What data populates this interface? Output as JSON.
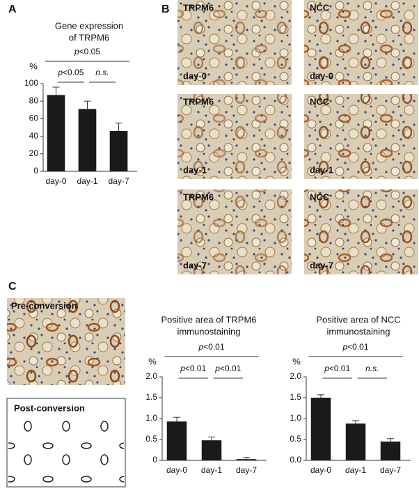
{
  "panels": [
    "A",
    "B",
    "C"
  ],
  "micrographs": [
    {
      "stain": "TRPM6",
      "day": "day-0"
    },
    {
      "stain": "NCC",
      "day": "day-0"
    },
    {
      "stain": "TRPM6",
      "day": "day-1"
    },
    {
      "stain": "NCC",
      "day": "day-1"
    },
    {
      "stain": "TRPM6",
      "day": "day-7"
    },
    {
      "stain": "NCC",
      "day": "day-7"
    }
  ],
  "conversion": [
    "Pre-conversion",
    "Post-conversion"
  ],
  "chart_data": [
    {
      "type": "bar",
      "title": [
        "Gene expression",
        "of TRPM6"
      ],
      "ylabel": "%",
      "categories": [
        "day-0",
        "day-1",
        "day-7"
      ],
      "values": [
        87,
        71,
        46
      ],
      "errors": [
        9,
        9,
        9
      ],
      "color": "#1a1a1a",
      "ylim": [
        0,
        100
      ],
      "yticks": [
        0,
        20,
        40,
        60,
        80,
        100
      ],
      "comparisons": [
        {
          "label": "p<0.05",
          "groups": [
            "day-0",
            "day-7"
          ]
        },
        {
          "label": "p<0.05",
          "groups": [
            "day-0",
            "day-1"
          ]
        },
        {
          "label": "n.s.",
          "groups": [
            "day-1",
            "day-7"
          ]
        }
      ]
    },
    {
      "type": "bar",
      "title": [
        "Positive area of TRPM6",
        "immunostaining"
      ],
      "ylabel": "%",
      "categories": [
        "day-0",
        "day-1",
        "day-7"
      ],
      "values": [
        0.93,
        0.48,
        0.03
      ],
      "errors": [
        0.1,
        0.08,
        0.04
      ],
      "color": "#1a1a1a",
      "ylim": [
        0,
        2
      ],
      "yticks": [
        0,
        0.5,
        {
          "value": 1,
          "label": "1.0"
        },
        1.5,
        {
          "value": 2,
          "label": "2.0"
        }
      ],
      "comparisons": [
        {
          "label": "p<0.01",
          "groups": [
            "day-0",
            "day-7"
          ]
        },
        {
          "label": "p<0.01",
          "groups": [
            "day-0",
            "day-1"
          ]
        },
        {
          "label": "p<0.01",
          "groups": [
            "day-1",
            "day-7"
          ]
        }
      ]
    },
    {
      "type": "bar",
      "title": [
        "Positive area of NCC",
        "immunostaining"
      ],
      "ylabel": "%",
      "categories": [
        "day-0",
        "day-1",
        "day-7"
      ],
      "values": [
        1.5,
        0.88,
        0.45
      ],
      "errors": [
        0.07,
        0.07,
        0.07
      ],
      "color": "#1a1a1a",
      "ylim": [
        0,
        2
      ],
      "yticks": [
        {
          "value": 0,
          "label": "0.0"
        },
        0.5,
        {
          "value": 1,
          "label": "1.0"
        },
        1.5,
        {
          "value": 2,
          "label": "2.0"
        }
      ],
      "comparisons": [
        {
          "label": "p<0.01",
          "groups": [
            "day-0",
            "day-7"
          ]
        },
        {
          "label": "p<0.01",
          "groups": [
            "day-0",
            "day-1"
          ]
        },
        {
          "label": "n.s.",
          "groups": [
            "day-1",
            "day-7"
          ]
        }
      ]
    }
  ]
}
